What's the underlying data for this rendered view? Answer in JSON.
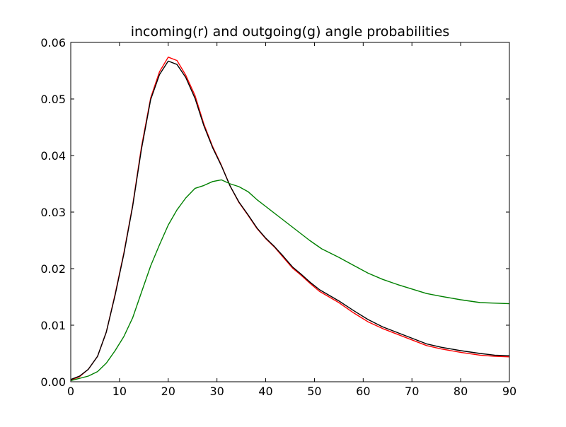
{
  "chart_data": {
    "type": "line",
    "title": "incoming(r) and outgoing(g) angle probabilities",
    "xlabel": "",
    "ylabel": "",
    "xlim": [
      0,
      90
    ],
    "ylim": [
      0,
      0.06
    ],
    "xticks": [
      0,
      10,
      20,
      30,
      40,
      50,
      60,
      70,
      80,
      90
    ],
    "yticks": [
      0.0,
      0.01,
      0.02,
      0.03,
      0.04,
      0.05,
      0.06
    ],
    "xtick_labels": [
      "0",
      "10",
      "20",
      "30",
      "40",
      "50",
      "60",
      "70",
      "80",
      "90"
    ],
    "ytick_labels": [
      "0.00",
      "0.01",
      "0.02",
      "0.03",
      "0.04",
      "0.05",
      "0.06"
    ],
    "grid": false,
    "legend": "none",
    "series": [
      {
        "color": "#ff0000",
        "x": [
          0,
          1.8,
          3.6,
          5.5,
          7.3,
          9.1,
          10.9,
          12.7,
          14.5,
          16.4,
          18.2,
          20.0,
          21.8,
          23.6,
          25.5,
          27.3,
          29.1,
          30.9,
          32.7,
          34.5,
          36.4,
          38.2,
          40.0,
          41.8,
          43.6,
          45.5,
          47.3,
          49.1,
          51.0,
          55.0,
          58.0,
          61.0,
          64.0,
          67.0,
          70.0,
          73.0,
          76.0,
          80.0,
          84.0,
          87.0,
          90.0
        ],
        "values": [
          0.0003,
          0.0009,
          0.0022,
          0.0045,
          0.0088,
          0.0155,
          0.0228,
          0.0312,
          0.0415,
          0.0502,
          0.0548,
          0.0574,
          0.0568,
          0.0542,
          0.0506,
          0.0456,
          0.0416,
          0.0383,
          0.0346,
          0.0317,
          0.0294,
          0.0271,
          0.0253,
          0.0238,
          0.022,
          0.0201,
          0.0188,
          0.0174,
          0.016,
          0.014,
          0.0122,
          0.0106,
          0.0094,
          0.0084,
          0.0074,
          0.0064,
          0.0058,
          0.0052,
          0.0047,
          0.0045,
          0.0044
        ]
      },
      {
        "color": "#000000",
        "x": [
          0,
          1.8,
          3.6,
          5.5,
          7.3,
          9.1,
          10.9,
          12.7,
          14.5,
          16.4,
          18.2,
          20.0,
          21.8,
          23.6,
          25.5,
          27.3,
          29.1,
          30.9,
          32.7,
          34.5,
          36.4,
          38.2,
          40.0,
          41.8,
          43.6,
          45.5,
          47.3,
          49.1,
          51.0,
          55.0,
          58.0,
          61.0,
          64.0,
          67.0,
          70.0,
          73.0,
          76.0,
          80.0,
          84.0,
          87.0,
          90.0
        ],
        "values": [
          0.0004,
          0.001,
          0.0022,
          0.0045,
          0.0088,
          0.0153,
          0.0226,
          0.031,
          0.0411,
          0.0499,
          0.0543,
          0.0567,
          0.0561,
          0.0538,
          0.0501,
          0.0453,
          0.0414,
          0.0382,
          0.0346,
          0.0318,
          0.0295,
          0.0272,
          0.0254,
          0.0239,
          0.0222,
          0.0203,
          0.019,
          0.0176,
          0.0163,
          0.0143,
          0.0126,
          0.011,
          0.0097,
          0.0087,
          0.0077,
          0.0067,
          0.0061,
          0.0055,
          0.005,
          0.0047,
          0.0046
        ]
      },
      {
        "color": "#008000",
        "x": [
          0,
          1.8,
          3.6,
          5.5,
          7.3,
          9.1,
          10.9,
          12.7,
          14.5,
          16.4,
          18.2,
          20.0,
          21.8,
          23.6,
          25.5,
          27.3,
          29.1,
          30.9,
          32.7,
          34.5,
          36.4,
          38.2,
          40.0,
          43.0,
          46.0,
          49.0,
          51.5,
          55.0,
          58.0,
          61.0,
          64.0,
          67.0,
          70.0,
          73.0,
          76.0,
          80.0,
          84.0,
          87.0,
          90.0
        ],
        "values": [
          0.0002,
          0.0006,
          0.001,
          0.0018,
          0.0033,
          0.0055,
          0.008,
          0.0113,
          0.0158,
          0.0205,
          0.0242,
          0.0277,
          0.0304,
          0.0325,
          0.0342,
          0.0347,
          0.0354,
          0.0357,
          0.035,
          0.0345,
          0.0336,
          0.0322,
          0.031,
          0.029,
          0.027,
          0.025,
          0.0235,
          0.022,
          0.0206,
          0.0192,
          0.0181,
          0.0172,
          0.0164,
          0.0156,
          0.0151,
          0.0145,
          0.014,
          0.0139,
          0.0138
        ]
      }
    ]
  }
}
